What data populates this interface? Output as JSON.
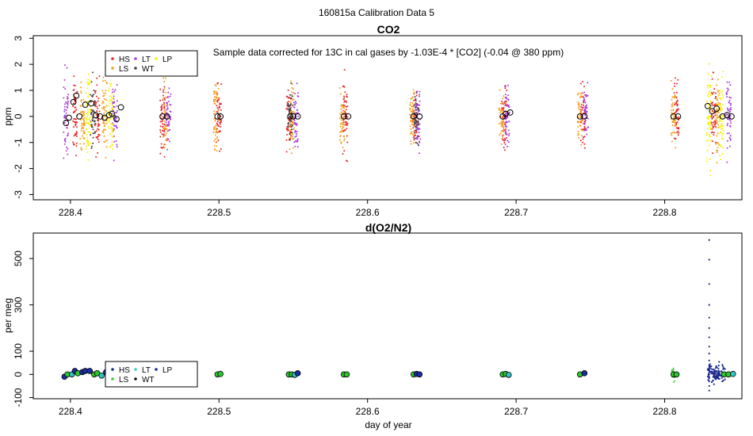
{
  "page_title": "160815a   Calibration Data 5",
  "colors": {
    "HS": "#e8262a",
    "LS": "#f5a01c",
    "LT": "#a83ee0",
    "WT": "#444444",
    "LP": "#f4f20a",
    "o2_HS": "#1c2a8e",
    "o2_LS": "#3ad03a",
    "o2_LT": "#3ac8c8",
    "o2_WT": "#111111",
    "o2_LP": "#1c2a8e",
    "o2_fill_green": "#2ec52e",
    "o2_fill_blue": "#1b2ea0",
    "o2_fill_cyan": "#30c4c4"
  },
  "chart_data": [
    {
      "type": "scatter",
      "title": "CO2",
      "annotation": "Sample data corrected for 13C in cal gases by -1.03E-4 * [CO2] (-0.04 @ 380 ppm)",
      "xlabel": "",
      "ylabel": "ppm",
      "xlim": [
        228.375,
        228.852
      ],
      "ylim": [
        -3.2,
        3.1
      ],
      "xticks": [
        "228.4",
        "228.5",
        "228.6",
        "228.7",
        "228.8"
      ],
      "xtick_values": [
        228.4,
        228.5,
        228.6,
        228.7,
        228.8
      ],
      "yticks": [
        "-3",
        "-2",
        "-1",
        "0",
        "1",
        "2",
        "3"
      ],
      "ytick_values": [
        -3,
        -2,
        -1,
        0,
        1,
        2,
        3
      ],
      "legend": {
        "position": "top-left",
        "entries": [
          "HS",
          "LT",
          "LP",
          "LS",
          "WT"
        ]
      },
      "series": [
        {
          "name": "HS",
          "clusters": [
            [
              228.403,
              0.9
            ],
            [
              228.418,
              0.9
            ],
            [
              228.462,
              0.9
            ],
            [
              228.5,
              0.8
            ],
            [
              228.547,
              0.8
            ],
            [
              228.585,
              0.9
            ],
            [
              228.632,
              0.7
            ],
            [
              228.692,
              0.8
            ],
            [
              228.745,
              0.8
            ],
            [
              228.808,
              0.8
            ],
            [
              228.833,
              0.9
            ]
          ]
        },
        {
          "name": "LS",
          "clusters": [
            [
              228.408,
              0.9
            ],
            [
              228.423,
              0.9
            ],
            [
              228.464,
              0.8
            ],
            [
              228.498,
              0.9
            ],
            [
              228.549,
              0.8
            ],
            [
              228.583,
              0.8
            ],
            [
              228.63,
              0.8
            ],
            [
              228.69,
              0.7
            ],
            [
              228.743,
              0.7
            ],
            [
              228.806,
              0.8
            ],
            [
              228.836,
              0.9
            ]
          ]
        },
        {
          "name": "LT",
          "clusters": [
            [
              228.397,
              0.9
            ],
            [
              228.43,
              0.9
            ],
            [
              228.466,
              0.7
            ],
            [
              228.552,
              0.7
            ],
            [
              228.634,
              0.8
            ],
            [
              228.694,
              0.8
            ],
            [
              228.747,
              0.7
            ],
            [
              228.843,
              0.9
            ]
          ]
        },
        {
          "name": "WT",
          "clusters": [
            [
              228.415,
              0.8
            ],
            [
              228.548,
              0.6
            ],
            [
              228.633,
              0.6
            ]
          ]
        },
        {
          "name": "LP",
          "clusters": [
            [
              228.412,
              1.1
            ],
            [
              228.427,
              1.0
            ],
            [
              228.83,
              1.2
            ],
            [
              228.838,
              1.0
            ]
          ]
        }
      ],
      "means": [
        {
          "x": 228.397,
          "y": -0.25
        },
        {
          "x": 228.399,
          "y": -0.05
        },
        {
          "x": 228.402,
          "y": 0.55
        },
        {
          "x": 228.404,
          "y": 0.8
        },
        {
          "x": 228.406,
          "y": 0.0
        },
        {
          "x": 228.41,
          "y": 0.45
        },
        {
          "x": 228.414,
          "y": 0.5
        },
        {
          "x": 228.417,
          "y": 0.05
        },
        {
          "x": 228.42,
          "y": 0.0
        },
        {
          "x": 228.423,
          "y": -0.05
        },
        {
          "x": 228.426,
          "y": 0.05
        },
        {
          "x": 228.428,
          "y": 0.1
        },
        {
          "x": 228.431,
          "y": -0.1
        },
        {
          "x": 228.434,
          "y": 0.35
        },
        {
          "x": 228.462,
          "y": 0.0
        },
        {
          "x": 228.465,
          "y": 0.0
        },
        {
          "x": 228.499,
          "y": 0.0
        },
        {
          "x": 228.501,
          "y": 0.0
        },
        {
          "x": 228.548,
          "y": 0.0
        },
        {
          "x": 228.55,
          "y": 0.0
        },
        {
          "x": 228.553,
          "y": 0.0
        },
        {
          "x": 228.584,
          "y": 0.0
        },
        {
          "x": 228.587,
          "y": 0.0
        },
        {
          "x": 228.631,
          "y": 0.0
        },
        {
          "x": 228.635,
          "y": 0.0
        },
        {
          "x": 228.691,
          "y": 0.0
        },
        {
          "x": 228.693,
          "y": 0.1
        },
        {
          "x": 228.696,
          "y": 0.15
        },
        {
          "x": 228.743,
          "y": 0.0
        },
        {
          "x": 228.746,
          "y": 0.0
        },
        {
          "x": 228.806,
          "y": 0.0
        },
        {
          "x": 228.809,
          "y": 0.0
        },
        {
          "x": 228.829,
          "y": 0.4
        },
        {
          "x": 228.832,
          "y": 0.2
        },
        {
          "x": 228.835,
          "y": 0.3
        },
        {
          "x": 228.839,
          "y": 0.0
        },
        {
          "x": 228.842,
          "y": 0.05
        },
        {
          "x": 228.845,
          "y": 0.0
        }
      ]
    },
    {
      "type": "scatter",
      "title": "d(O2/N2)",
      "xlabel": "day of year",
      "ylabel": "per meg",
      "xlim": [
        228.375,
        228.852
      ],
      "ylim": [
        -105,
        610
      ],
      "xticks": [
        "228.4",
        "228.5",
        "228.6",
        "228.7",
        "228.8"
      ],
      "xtick_values": [
        228.4,
        228.5,
        228.6,
        228.7,
        228.8
      ],
      "yticks": [
        "-100",
        "0",
        "100",
        "300",
        "500"
      ],
      "ytick_values": [
        -100,
        0,
        100,
        300,
        500
      ],
      "legend": {
        "position": "bottom-left",
        "entries": [
          "HS",
          "LT",
          "LP",
          "LS",
          "WT"
        ]
      },
      "spike": {
        "x": 228.83,
        "values": [
          580,
          495,
          390,
          300,
          245,
          200,
          160,
          120,
          90,
          60,
          40,
          20,
          10,
          0,
          -10,
          -30,
          -50,
          -70
        ]
      },
      "points": [
        {
          "x": 228.396,
          "y": -10,
          "c": "blue"
        },
        {
          "x": 228.398,
          "y": 0,
          "c": "green"
        },
        {
          "x": 228.401,
          "y": 0,
          "c": "cyan"
        },
        {
          "x": 228.403,
          "y": 15,
          "c": "blue"
        },
        {
          "x": 228.405,
          "y": 5,
          "c": "green"
        },
        {
          "x": 228.408,
          "y": 10,
          "c": "blue"
        },
        {
          "x": 228.41,
          "y": 15,
          "c": "blue"
        },
        {
          "x": 228.413,
          "y": 15,
          "c": "blue"
        },
        {
          "x": 228.416,
          "y": 0,
          "c": "green"
        },
        {
          "x": 228.418,
          "y": 5,
          "c": "green"
        },
        {
          "x": 228.421,
          "y": -5,
          "c": "cyan"
        },
        {
          "x": 228.424,
          "y": 10,
          "c": "blue"
        },
        {
          "x": 228.462,
          "y": 0,
          "c": "green"
        },
        {
          "x": 228.464,
          "y": 2,
          "c": "blue"
        },
        {
          "x": 228.499,
          "y": 0,
          "c": "green"
        },
        {
          "x": 228.501,
          "y": 2,
          "c": "green"
        },
        {
          "x": 228.547,
          "y": 0,
          "c": "green"
        },
        {
          "x": 228.549,
          "y": 0,
          "c": "green"
        },
        {
          "x": 228.551,
          "y": -2,
          "c": "cyan"
        },
        {
          "x": 228.553,
          "y": 5,
          "c": "blue"
        },
        {
          "x": 228.584,
          "y": 0,
          "c": "green"
        },
        {
          "x": 228.586,
          "y": 0,
          "c": "green"
        },
        {
          "x": 228.631,
          "y": 0,
          "c": "green"
        },
        {
          "x": 228.633,
          "y": 2,
          "c": "blue"
        },
        {
          "x": 228.635,
          "y": 0,
          "c": "blue"
        },
        {
          "x": 228.691,
          "y": 0,
          "c": "green"
        },
        {
          "x": 228.693,
          "y": 2,
          "c": "green"
        },
        {
          "x": 228.695,
          "y": -2,
          "c": "cyan"
        },
        {
          "x": 228.743,
          "y": 0,
          "c": "green"
        },
        {
          "x": 228.746,
          "y": 5,
          "c": "blue"
        },
        {
          "x": 228.806,
          "y": 0,
          "c": "green"
        },
        {
          "x": 228.808,
          "y": 0,
          "c": "green"
        },
        {
          "x": 228.84,
          "y": 0,
          "c": "green"
        },
        {
          "x": 228.843,
          "y": 0,
          "c": "green"
        },
        {
          "x": 228.846,
          "y": 2,
          "c": "cyan"
        }
      ],
      "noise_clusters": [
        {
          "x": 228.806,
          "spread": 25,
          "c": "LS"
        },
        {
          "x": 228.835,
          "spread": 20,
          "c": "HS"
        }
      ]
    }
  ]
}
